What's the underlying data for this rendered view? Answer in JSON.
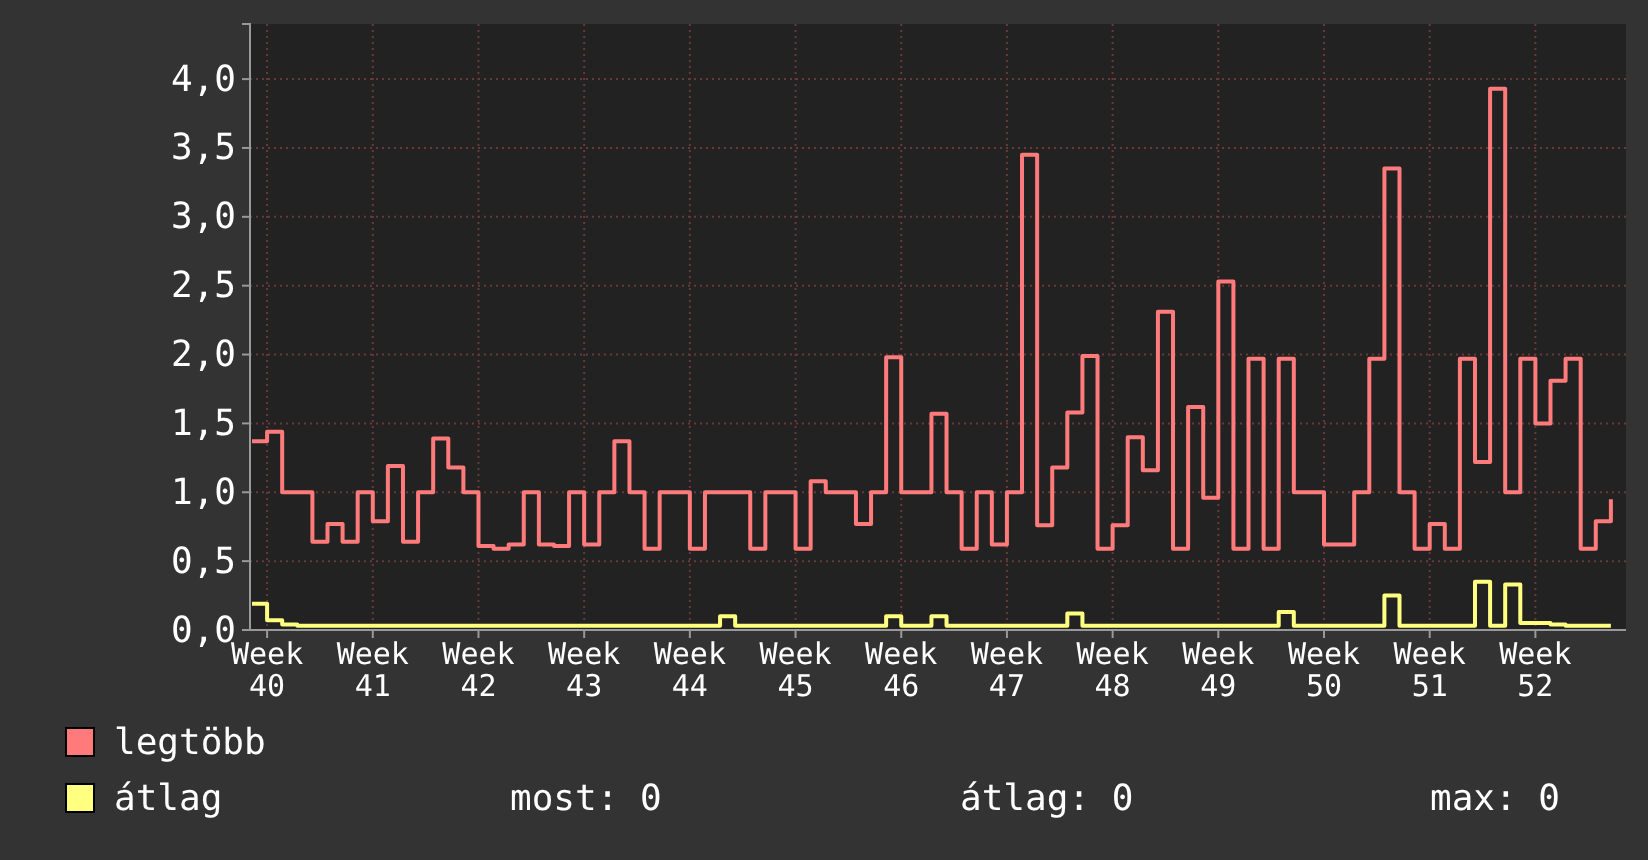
{
  "chart_data": {
    "type": "step",
    "categories": [
      null,
      "Week 40",
      null,
      null,
      null,
      null,
      null,
      null,
      "Week 41",
      null,
      null,
      null,
      null,
      null,
      null,
      "Week 42",
      null,
      null,
      null,
      null,
      null,
      null,
      "Week 43",
      null,
      null,
      null,
      null,
      null,
      null,
      "Week 44",
      null,
      null,
      null,
      null,
      null,
      null,
      "Week 45",
      null,
      null,
      null,
      null,
      null,
      null,
      "Week 46",
      null,
      null,
      null,
      null,
      null,
      null,
      "Week 47",
      null,
      null,
      null,
      null,
      null,
      null,
      "Week 48",
      null,
      null,
      null,
      null,
      null,
      null,
      "Week 49",
      null,
      null,
      null,
      null,
      null,
      null,
      "Week 50",
      null,
      null,
      null,
      null,
      null,
      null,
      "Week 51",
      null,
      null,
      null,
      null,
      null,
      null,
      "Week 52",
      null,
      null,
      null,
      null,
      null
    ],
    "series": [
      {
        "name": "legtöbb",
        "color": "#ff7b7b",
        "values": [
          1.37,
          1.44,
          1.0,
          1.0,
          0.64,
          0.77,
          0.64,
          1.0,
          0.79,
          1.19,
          0.64,
          1.0,
          1.39,
          1.18,
          1.0,
          0.61,
          0.59,
          0.62,
          1.0,
          0.62,
          0.61,
          1.0,
          0.62,
          1.0,
          1.37,
          1.0,
          0.59,
          1.0,
          1.0,
          0.59,
          1.0,
          1.0,
          1.0,
          0.59,
          1.0,
          1.0,
          0.59,
          1.08,
          1.0,
          1.0,
          0.77,
          1.0,
          1.98,
          1.0,
          1.0,
          1.57,
          1.0,
          0.59,
          1.0,
          0.62,
          1.0,
          3.45,
          0.76,
          1.18,
          1.58,
          1.99,
          0.59,
          0.76,
          1.4,
          1.16,
          2.31,
          0.59,
          1.62,
          0.96,
          2.53,
          0.59,
          1.97,
          0.59,
          1.97,
          1.0,
          1.0,
          0.62,
          0.62,
          1.0,
          1.97,
          3.35,
          1.0,
          0.59,
          0.77,
          0.59,
          1.97,
          1.22,
          3.93,
          1.0,
          1.97,
          1.5,
          1.81,
          1.97,
          0.59,
          0.79,
          0.95
        ]
      },
      {
        "name": "átlag",
        "color": "#ffff80",
        "values": [
          0.19,
          0.07,
          0.04,
          0.03,
          0.03,
          0.03,
          0.03,
          0.03,
          0.03,
          0.03,
          0.03,
          0.03,
          0.03,
          0.03,
          0.03,
          0.03,
          0.03,
          0.03,
          0.03,
          0.03,
          0.03,
          0.03,
          0.03,
          0.03,
          0.03,
          0.03,
          0.03,
          0.03,
          0.03,
          0.03,
          0.03,
          0.1,
          0.03,
          0.03,
          0.03,
          0.03,
          0.03,
          0.03,
          0.03,
          0.03,
          0.03,
          0.03,
          0.1,
          0.03,
          0.03,
          0.1,
          0.03,
          0.03,
          0.03,
          0.03,
          0.03,
          0.03,
          0.03,
          0.03,
          0.12,
          0.03,
          0.03,
          0.03,
          0.03,
          0.03,
          0.03,
          0.03,
          0.03,
          0.03,
          0.03,
          0.03,
          0.03,
          0.03,
          0.13,
          0.03,
          0.03,
          0.03,
          0.03,
          0.03,
          0.03,
          0.25,
          0.03,
          0.03,
          0.03,
          0.03,
          0.03,
          0.35,
          0.03,
          0.33,
          0.05,
          0.05,
          0.04,
          0.03,
          0.03,
          0.03,
          0.03
        ]
      }
    ],
    "ylim": [
      0,
      4.4
    ],
    "yticks": [
      {
        "value": 0,
        "label": "0,0"
      },
      {
        "value": 0.5,
        "label": "0,5"
      },
      {
        "value": 1,
        "label": "1,0"
      },
      {
        "value": 1.5,
        "label": "1,5"
      },
      {
        "value": 2,
        "label": "2,0"
      },
      {
        "value": 2.5,
        "label": "2,5"
      },
      {
        "value": 3,
        "label": "3,0"
      },
      {
        "value": 3.5,
        "label": "3,5"
      },
      {
        "value": 4,
        "label": "4,0"
      }
    ],
    "grid": true,
    "legend": "bottom",
    "line_style": "solid",
    "annotations": [
      "most: 0",
      "átlag: 0",
      "max: 0"
    ]
  }
}
